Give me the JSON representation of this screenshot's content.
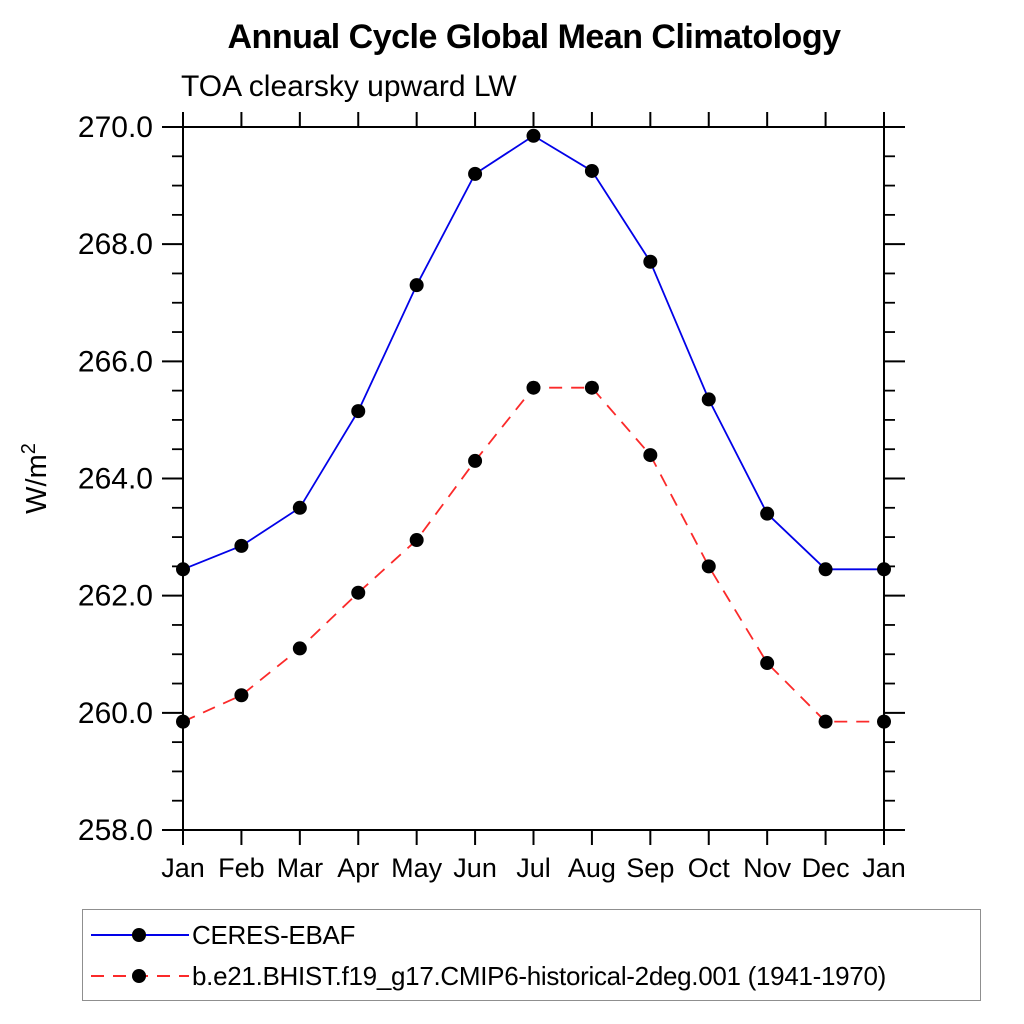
{
  "title": "Annual Cycle Global Mean Climatology",
  "subtitle": "TOA clearsky upward LW",
  "legend": {
    "items": [
      {
        "label": "CERES-EBAF",
        "color": "#0202e8",
        "style": "solid",
        "marker_color": "#000000"
      },
      {
        "label": "b.e21.BHIST.f19_g17.CMIP6-historical-2deg.001 (1941-1970)",
        "color": "#fb2a2a",
        "style": "dashed",
        "marker_color": "#000000"
      }
    ]
  },
  "chart_data": {
    "type": "line",
    "title": "Annual Cycle Global Mean Climatology",
    "subtitle": "TOA clearsky upward LW",
    "ylabel": "W/m²",
    "xlabel": "",
    "categories": [
      "Jan",
      "Feb",
      "Mar",
      "Apr",
      "May",
      "Jun",
      "Jul",
      "Aug",
      "Sep",
      "Oct",
      "Nov",
      "Dec",
      "Jan"
    ],
    "series": [
      {
        "name": "CERES-EBAF",
        "color": "#0202e8",
        "line_style": "solid",
        "marker": "filled-circle",
        "marker_color": "#000000",
        "values": [
          262.45,
          262.85,
          263.5,
          265.15,
          267.3,
          269.2,
          269.85,
          269.25,
          267.7,
          265.35,
          263.4,
          262.45,
          262.45
        ]
      },
      {
        "name": "b.e21.BHIST.f19_g17.CMIP6-historical-2deg.001 (1941-1970)",
        "color": "#fb2a2a",
        "line_style": "dashed",
        "marker": "filled-circle",
        "marker_color": "#000000",
        "values": [
          259.85,
          260.3,
          261.1,
          262.05,
          262.95,
          264.3,
          265.55,
          265.55,
          264.4,
          262.5,
          260.85,
          259.85,
          259.85
        ]
      }
    ],
    "ylim": [
      258.0,
      270.0
    ],
    "y_major_ticks": [
      258.0,
      260.0,
      262.0,
      264.0,
      266.0,
      268.0,
      270.0
    ],
    "y_minor_step": 0.5,
    "y_tick_label_format": "one-decimal",
    "grid": false,
    "legend_position": "bottom-left",
    "frame": "box-with-outward-ticks"
  }
}
